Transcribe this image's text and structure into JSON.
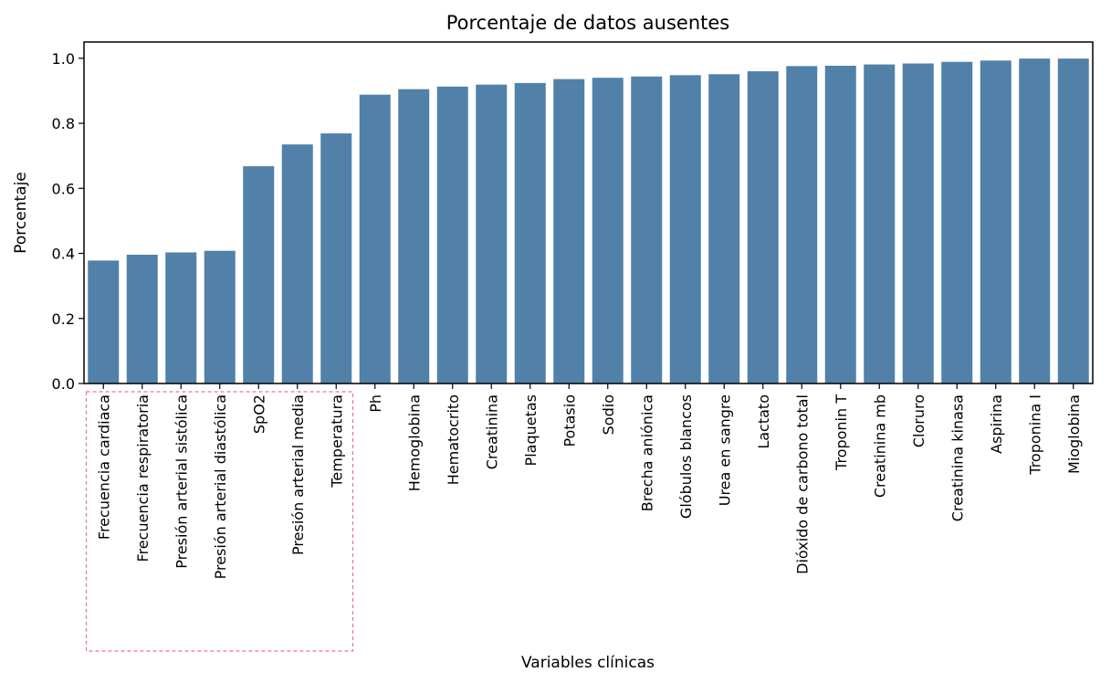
{
  "chart_data": {
    "type": "bar",
    "title": "Porcentaje de datos ausentes",
    "xlabel": "Variables clínicas",
    "ylabel": "Porcentaje",
    "ylim": [
      0,
      1.05
    ],
    "yticks": [
      "0.0",
      "0.2",
      "0.4",
      "0.6",
      "0.8",
      "1.0"
    ],
    "grid": false,
    "categories": [
      "Frecuencia cardiaca",
      "Frecuencia respiratoria",
      "Presión arterial sistólica",
      "Presión arterial diastólica",
      "SpO2",
      "Presión arterial media",
      "Temperatura",
      "Ph",
      "Hemoglobina",
      "Hematocrito",
      "Creatinina",
      "Plaquetas",
      "Potasio",
      "Sodio",
      "Brecha aniónica",
      "Glóbulos blancos",
      "Urea en sangre",
      "Lactato",
      "Dióxido de carbono total",
      "Troponin T",
      "Creatinina mb",
      "Cloruro",
      "Creatinina kinasa",
      "Aspirina",
      "Troponina I",
      "Mioglobina"
    ],
    "values": [
      0.378,
      0.396,
      0.403,
      0.408,
      0.668,
      0.735,
      0.769,
      0.888,
      0.905,
      0.913,
      0.919,
      0.924,
      0.936,
      0.94,
      0.944,
      0.948,
      0.951,
      0.96,
      0.976,
      0.977,
      0.981,
      0.984,
      0.989,
      0.993,
      0.999,
      0.999
    ],
    "bar_color": "#5181a8",
    "highlight_box_color": "#f06bb4",
    "highlight_categories": [
      "Frecuencia cardiaca",
      "Frecuencia respiratoria",
      "Presión arterial sistólica",
      "Presión arterial diastólica",
      "SpO2",
      "Presión arterial media",
      "Temperatura"
    ]
  }
}
